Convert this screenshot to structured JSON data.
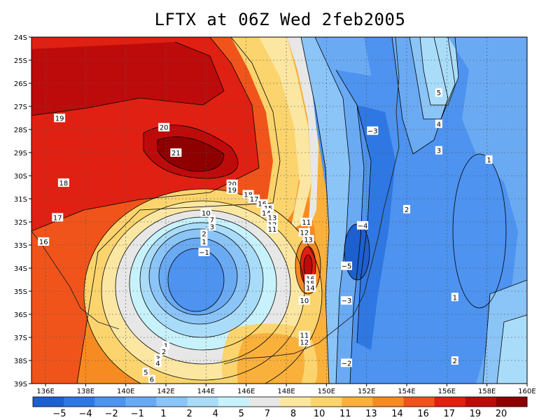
{
  "title": "LFTX at 06Z Wed 2feb2005",
  "lat_labels": [
    "24S",
    "25S",
    "26S",
    "27S",
    "28S",
    "29S",
    "30S",
    "31S",
    "32S",
    "33S",
    "34S",
    "35S",
    "36S",
    "37S",
    "38S",
    "39S"
  ],
  "lon_labels": [
    "136E",
    "138E",
    "140E",
    "142E",
    "144E",
    "146E",
    "148E",
    "150E",
    "152E",
    "154E",
    "156E",
    "158E",
    "160E"
  ],
  "colorbar": {
    "colors": [
      "#1e5fd0",
      "#2f78e3",
      "#4d93ef",
      "#6aaaf3",
      "#8bc4f7",
      "#a9dcf9",
      "#c8f2fb",
      "#e7e7e7",
      "#fbe7a2",
      "#fbd46e",
      "#f9b13c",
      "#f68b22",
      "#f0541b",
      "#e02012",
      "#bd0b0b",
      "#8e0000"
    ],
    "labels": [
      "−5",
      "−4",
      "−2",
      "−1",
      "1",
      "2",
      "4",
      "5",
      "7",
      "8",
      "10",
      "11",
      "13",
      "14",
      "16",
      "17",
      "19",
      "20"
    ]
  },
  "contour_labels": [
    {
      "text": "19",
      "lon": 136.7,
      "lat": -27.5
    },
    {
      "text": "20",
      "lon": 141.9,
      "lat": -27.9
    },
    {
      "text": "21",
      "lon": 142.5,
      "lat": -29.0
    },
    {
      "text": "18",
      "lon": 136.9,
      "lat": -30.3
    },
    {
      "text": "20",
      "lon": 145.3,
      "lat": -30.35
    },
    {
      "text": "19",
      "lon": 145.3,
      "lat": -30.6
    },
    {
      "text": "18",
      "lon": 146.1,
      "lat": -30.8
    },
    {
      "text": "17",
      "lon": 146.4,
      "lat": -31.0
    },
    {
      "text": "16",
      "lon": 146.8,
      "lat": -31.2
    },
    {
      "text": "15",
      "lon": 147.1,
      "lat": -31.4
    },
    {
      "text": "14",
      "lon": 147.0,
      "lat": -31.6
    },
    {
      "text": "13",
      "lon": 147.3,
      "lat": -31.8
    },
    {
      "text": "12",
      "lon": 147.3,
      "lat": -32.1
    },
    {
      "text": "11",
      "lon": 147.3,
      "lat": -32.3
    },
    {
      "text": "17",
      "lon": 136.6,
      "lat": -31.8
    },
    {
      "text": "16",
      "lon": 135.9,
      "lat": -32.85
    },
    {
      "text": "10",
      "lon": 144.0,
      "lat": -31.6
    },
    {
      "text": "7",
      "lon": 144.3,
      "lat": -31.9
    },
    {
      "text": "3",
      "lon": 144.3,
      "lat": -32.2
    },
    {
      "text": "2",
      "lon": 143.9,
      "lat": -32.5
    },
    {
      "text": "1",
      "lon": 143.9,
      "lat": -32.85
    },
    {
      "text": "−1",
      "lon": 143.9,
      "lat": -33.3
    },
    {
      "text": "11",
      "lon": 149.0,
      "lat": -32.0
    },
    {
      "text": "12",
      "lon": 148.9,
      "lat": -32.45
    },
    {
      "text": "13",
      "lon": 149.1,
      "lat": -32.75
    },
    {
      "text": "16",
      "lon": 149.2,
      "lat": -34.45
    },
    {
      "text": "15",
      "lon": 149.2,
      "lat": -34.65
    },
    {
      "text": "14",
      "lon": 149.2,
      "lat": -34.85
    },
    {
      "text": "10",
      "lon": 148.9,
      "lat": -35.4
    },
    {
      "text": "11",
      "lon": 148.9,
      "lat": -36.9
    },
    {
      "text": "12",
      "lon": 148.9,
      "lat": -37.2
    },
    {
      "text": "1",
      "lon": 142.0,
      "lat": -37.35
    },
    {
      "text": "2",
      "lon": 141.9,
      "lat": -37.6
    },
    {
      "text": "3",
      "lon": 141.6,
      "lat": -37.9
    },
    {
      "text": "4",
      "lon": 141.6,
      "lat": -38.1
    },
    {
      "text": "5",
      "lon": 141.0,
      "lat": -38.5
    },
    {
      "text": "6",
      "lon": 141.3,
      "lat": -38.8
    },
    {
      "text": "−3",
      "lon": 152.3,
      "lat": -28.05
    },
    {
      "text": "−4",
      "lon": 151.8,
      "lat": -32.15
    },
    {
      "text": "−5",
      "lon": 151.0,
      "lat": -33.9
    },
    {
      "text": "−3",
      "lon": 151.0,
      "lat": -35.4
    },
    {
      "text": "−2",
      "lon": 151.0,
      "lat": -38.1
    },
    {
      "text": "5",
      "lon": 155.6,
      "lat": -26.4
    },
    {
      "text": "4",
      "lon": 155.6,
      "lat": -27.75
    },
    {
      "text": "3",
      "lon": 155.6,
      "lat": -28.9
    },
    {
      "text": "2",
      "lon": 154.0,
      "lat": -31.45
    },
    {
      "text": "1",
      "lon": 158.1,
      "lat": -29.3
    },
    {
      "text": "1",
      "lon": 156.4,
      "lat": -35.25
    },
    {
      "text": "2",
      "lon": 156.4,
      "lat": -38.0
    }
  ]
}
